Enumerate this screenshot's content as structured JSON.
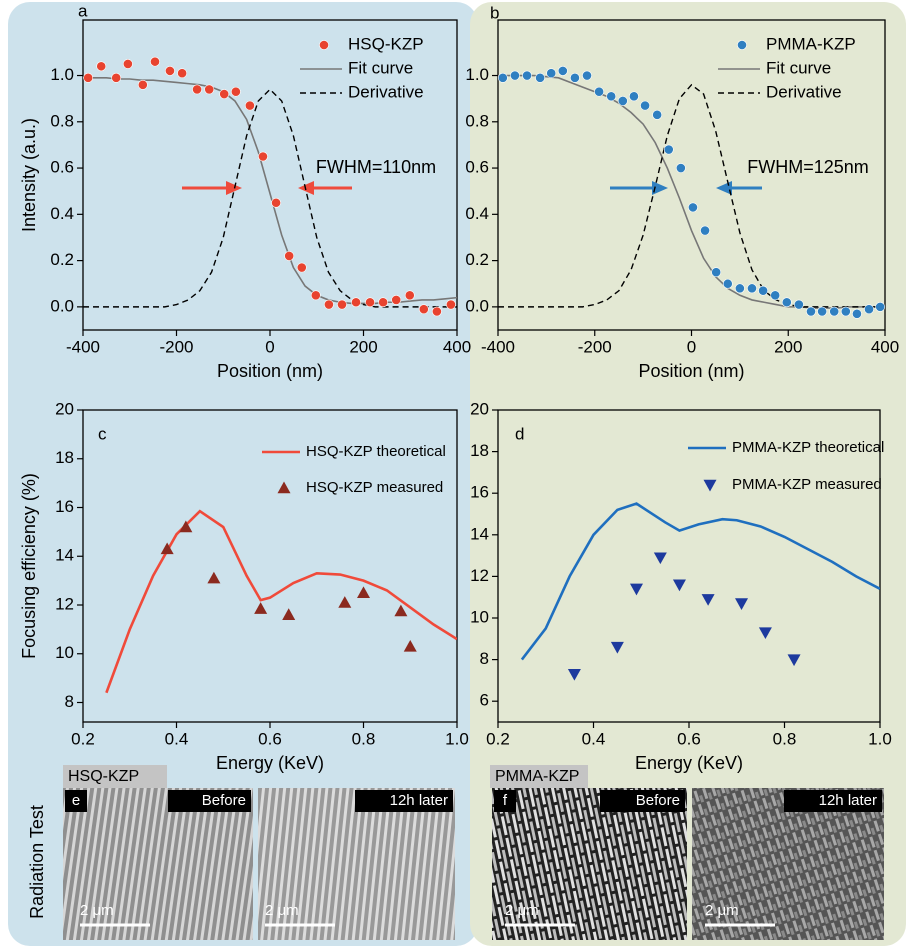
{
  "chart_data": [
    {
      "type": "line",
      "panel_label": "a",
      "xlabel": "Position (nm)",
      "ylabel": "Intensity (a.u.)",
      "xlim": [
        -400,
        400
      ],
      "ylim": [
        -0.1,
        1.24
      ],
      "xticks": [
        -400,
        -200,
        0,
        200,
        400
      ],
      "yticks": [
        {
          "value": 0,
          "label": "0.0"
        },
        0.2,
        0.4,
        0.6,
        0.8,
        {
          "value": 1,
          "label": "1.0"
        }
      ],
      "annotation": "FWHM=110nm",
      "series": [
        {
          "name": "HSQ-KZP",
          "color": "#e8432f",
          "style": "markers",
          "marker": "circle",
          "x": [
            -389,
            -361,
            -329,
            -304,
            -272,
            -246,
            -214,
            -188,
            -156,
            -130,
            -98,
            -73,
            -43,
            -15,
            13,
            41,
            68,
            98,
            126,
            154,
            184,
            214,
            242,
            270,
            299,
            329,
            357,
            387
          ],
          "values": [
            0.99,
            1.04,
            0.99,
            1.05,
            0.96,
            1.06,
            1.02,
            1.01,
            0.94,
            0.94,
            0.92,
            0.93,
            0.87,
            0.65,
            0.45,
            0.22,
            0.17,
            0.05,
            0.01,
            0.01,
            0.02,
            0.02,
            0.02,
            0.03,
            0.05,
            -0.01,
            -0.02,
            0.01
          ]
        },
        {
          "name": "Fit curve",
          "color": "#777777",
          "style": "line",
          "x": [
            -400,
            -375,
            -350,
            -325,
            -300,
            -275,
            -250,
            -225,
            -200,
            -175,
            -150,
            -125,
            -100,
            -75,
            -50,
            -25,
            0,
            25,
            50,
            75,
            100,
            125,
            150,
            175,
            200,
            225,
            250,
            275,
            300,
            325,
            350,
            375,
            400
          ],
          "values": [
            0.99,
            0.99,
            0.99,
            0.985,
            0.985,
            0.98,
            0.98,
            0.975,
            0.97,
            0.965,
            0.96,
            0.95,
            0.93,
            0.89,
            0.81,
            0.67,
            0.49,
            0.31,
            0.17,
            0.09,
            0.05,
            0.03,
            0.02,
            0.015,
            0.015,
            0.015,
            0.02,
            0.02,
            0.025,
            0.03,
            0.03,
            0.035,
            0.04
          ]
        },
        {
          "name": "Derivative",
          "color": "#000000",
          "style": "dashed",
          "x": [
            -400,
            -375,
            -350,
            -325,
            -300,
            -275,
            -250,
            -225,
            -200,
            -175,
            -150,
            -125,
            -100,
            -75,
            -50,
            -25,
            0,
            25,
            50,
            75,
            100,
            125,
            150,
            175,
            200,
            225,
            250,
            275,
            300,
            325,
            350,
            375,
            400
          ],
          "values": [
            0,
            0,
            0,
            0,
            0,
            0,
            0,
            0,
            0.01,
            0.03,
            0.07,
            0.15,
            0.3,
            0.52,
            0.74,
            0.89,
            0.94,
            0.89,
            0.74,
            0.52,
            0.3,
            0.15,
            0.07,
            0.03,
            0.01,
            0,
            0,
            0,
            0,
            0,
            0,
            0,
            0
          ]
        }
      ]
    },
    {
      "type": "line",
      "panel_label": "b",
      "xlabel": "Position (nm)",
      "xlim": [
        -400,
        400
      ],
      "ylim": [
        -0.1,
        1.24
      ],
      "xticks": [
        -400,
        -200,
        0,
        200,
        400
      ],
      "yticks": [
        {
          "value": 0,
          "label": "0.0"
        },
        0.2,
        0.4,
        0.6,
        0.8,
        {
          "value": 1,
          "label": "1.0"
        }
      ],
      "annotation": "FWHM=125nm",
      "series": [
        {
          "name": "PMMA-KZP",
          "color": "#2f7fc1",
          "style": "markers",
          "marker": "circle",
          "x": [
            -390,
            -365,
            -340,
            -313,
            -290,
            -266,
            -241,
            -216,
            -191,
            -166,
            -142,
            -119,
            -96,
            -71,
            -47,
            -22,
            3,
            28,
            51,
            75,
            100,
            125,
            148,
            173,
            197,
            222,
            247,
            270,
            295,
            319,
            342,
            367,
            390
          ],
          "values": [
            0.99,
            1.0,
            1.0,
            0.99,
            1.01,
            1.02,
            0.99,
            1.0,
            0.93,
            0.91,
            0.89,
            0.91,
            0.87,
            0.83,
            0.68,
            0.6,
            0.43,
            0.33,
            0.15,
            0.1,
            0.08,
            0.08,
            0.07,
            0.05,
            0.02,
            0.01,
            -0.02,
            -0.02,
            -0.02,
            -0.02,
            -0.03,
            -0.01,
            0
          ]
        },
        {
          "name": "Fit curve",
          "color": "#777777",
          "style": "line",
          "x": [
            -400,
            -375,
            -350,
            -325,
            -300,
            -275,
            -250,
            -225,
            -200,
            -175,
            -150,
            -125,
            -100,
            -75,
            -50,
            -25,
            0,
            25,
            50,
            75,
            100,
            125,
            150,
            175,
            200,
            225,
            250,
            275,
            300,
            325,
            350,
            375,
            400
          ],
          "values": [
            1.0,
            1.0,
            1.0,
            1.0,
            0.995,
            0.99,
            0.97,
            0.95,
            0.93,
            0.91,
            0.88,
            0.84,
            0.79,
            0.71,
            0.6,
            0.47,
            0.33,
            0.21,
            0.13,
            0.08,
            0.05,
            0.03,
            0.02,
            0.01,
            0,
            0,
            -0.005,
            -0.005,
            -0.005,
            0,
            0,
            0,
            0
          ]
        },
        {
          "name": "Derivative",
          "color": "#000000",
          "style": "dashed",
          "x": [
            -400,
            -375,
            -350,
            -325,
            -300,
            -275,
            -250,
            -225,
            -200,
            -175,
            -150,
            -125,
            -100,
            -75,
            -50,
            -25,
            0,
            25,
            50,
            75,
            100,
            125,
            150,
            175,
            200,
            225,
            250,
            275,
            300,
            325,
            350,
            375,
            400
          ],
          "values": [
            0,
            0,
            0,
            0,
            0,
            0,
            0,
            0,
            0.01,
            0.03,
            0.07,
            0.16,
            0.31,
            0.52,
            0.74,
            0.9,
            0.96,
            0.92,
            0.76,
            0.54,
            0.32,
            0.16,
            0.07,
            0.03,
            0.01,
            0,
            0,
            0,
            0,
            0,
            0,
            0,
            0
          ]
        }
      ]
    },
    {
      "type": "line",
      "panel_label": "c",
      "xlabel": "Energy (KeV)",
      "ylabel": "Focusing efficiency (%)",
      "xlim": [
        0.2,
        1.0
      ],
      "ylim": [
        7.2,
        20
      ],
      "xticks": [
        0.2,
        0.4,
        0.6,
        0.8,
        {
          "value": 1,
          "label": "1.0"
        }
      ],
      "yticks": [
        8,
        10,
        12,
        14,
        16,
        18,
        20
      ],
      "series": [
        {
          "name": "HSQ-KZP theoretical",
          "color": "#f04a3a",
          "style": "line",
          "x": [
            0.25,
            0.3,
            0.35,
            0.4,
            0.45,
            0.5,
            0.55,
            0.58,
            0.6,
            0.65,
            0.7,
            0.75,
            0.8,
            0.85,
            0.9,
            0.95,
            1.0
          ],
          "values": [
            8.4,
            11.0,
            13.2,
            14.9,
            15.85,
            15.2,
            13.2,
            12.2,
            12.3,
            12.9,
            13.3,
            13.25,
            13.0,
            12.6,
            11.9,
            11.2,
            10.6
          ]
        },
        {
          "name": "HSQ-KZP measured",
          "color": "#8b2a1f",
          "style": "markers",
          "marker": "triangle-up",
          "x": [
            0.38,
            0.42,
            0.48,
            0.58,
            0.64,
            0.76,
            0.8,
            0.88,
            0.9
          ],
          "values": [
            14.3,
            15.2,
            13.1,
            11.85,
            11.6,
            12.1,
            12.5,
            11.75,
            10.3
          ]
        }
      ]
    },
    {
      "type": "line",
      "panel_label": "d",
      "xlabel": "Energy (KeV)",
      "xlim": [
        0.2,
        1.0
      ],
      "ylim": [
        5,
        20
      ],
      "xticks": [
        0.2,
        0.4,
        0.6,
        0.8,
        {
          "value": 1,
          "label": "1.0"
        }
      ],
      "yticks": [
        6,
        8,
        10,
        12,
        14,
        16,
        18,
        20
      ],
      "series": [
        {
          "name": "PMMA-KZP theoretical",
          "color": "#1f6fbf",
          "style": "line",
          "x": [
            0.25,
            0.3,
            0.35,
            0.4,
            0.45,
            0.49,
            0.55,
            0.58,
            0.62,
            0.67,
            0.7,
            0.75,
            0.8,
            0.85,
            0.9,
            0.95,
            1.0
          ],
          "values": [
            8.0,
            9.5,
            12.0,
            14.0,
            15.2,
            15.5,
            14.6,
            14.2,
            14.5,
            14.75,
            14.7,
            14.4,
            13.9,
            13.3,
            12.7,
            12.0,
            11.4
          ]
        },
        {
          "name": "PMMA-KZP measured",
          "color": "#1d3a9e",
          "style": "markers",
          "marker": "triangle-down",
          "x": [
            0.36,
            0.45,
            0.49,
            0.54,
            0.58,
            0.64,
            0.71,
            0.76,
            0.82
          ],
          "values": [
            7.3,
            8.6,
            11.4,
            12.9,
            11.6,
            10.9,
            10.7,
            9.3,
            8.0
          ]
        }
      ]
    }
  ],
  "sem_panels": {
    "side_label": "Radiation Test",
    "groups": [
      {
        "title": "HSQ-KZP",
        "panel_label": "e",
        "images": [
          {
            "tag": "Before",
            "scale": "2 μm"
          },
          {
            "tag": "12h later",
            "scale": "2 μm"
          }
        ]
      },
      {
        "title": "PMMA-KZP",
        "panel_label": "f",
        "images": [
          {
            "tag": "Before",
            "scale": "2 μm"
          },
          {
            "tag": "12h later",
            "scale": "2 μm"
          }
        ]
      }
    ]
  }
}
